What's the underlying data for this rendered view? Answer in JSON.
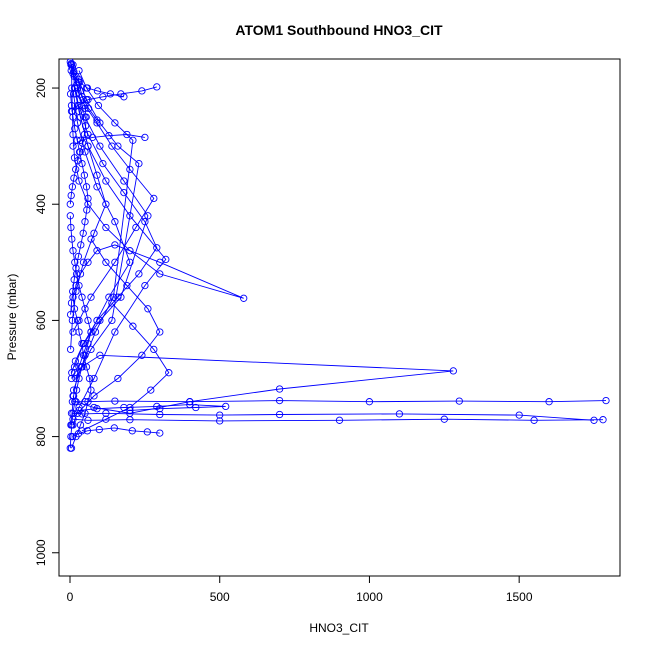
{
  "chart_data": {
    "type": "line",
    "title": "ATOM1 Southbound HNO3_CIT",
    "xlabel": "HNO3_CIT",
    "ylabel": "Pressure (mbar)",
    "xlim": [
      0,
      1800
    ],
    "ylim": [
      1040,
      150
    ],
    "y_reversed": true,
    "grid": false,
    "color": "#0000ff",
    "x_ticks": [
      0,
      500,
      1000,
      1500
    ],
    "y_ticks": [
      200,
      400,
      600,
      800,
      1000
    ],
    "series": [
      {
        "x": [
          5,
          20,
          35,
          50,
          60,
          70,
          65,
          55,
          45,
          40,
          30,
          25,
          15,
          10,
          20,
          35,
          60,
          90,
          150,
          300,
          580,
          300,
          200,
          120,
          60,
          30,
          15,
          10,
          8,
          6,
          5
        ],
        "y": [
          820,
          800,
          780,
          760,
          740,
          720,
          700,
          680,
          660,
          640,
          620,
          600,
          580,
          560,
          540,
          520,
          500,
          480,
          470,
          500,
          562,
          520,
          480,
          440,
          400,
          360,
          320,
          280,
          240,
          200,
          160
        ]
      },
      {
        "x": [
          10,
          30,
          80,
          150,
          250,
          320,
          200,
          120,
          60,
          30,
          15,
          10
        ],
        "y": [
          780,
          750,
          700,
          620,
          540,
          495,
          420,
          360,
          300,
          240,
          200,
          160
        ]
      },
      {
        "x": [
          5,
          15,
          40,
          100,
          1280,
          700,
          400,
          200,
          80,
          20,
          10
        ],
        "y": [
          700,
          690,
          680,
          660,
          687,
          718,
          740,
          760,
          750,
          740,
          730
        ]
      },
      {
        "x": [
          8,
          50,
          150,
          400,
          700,
          1000,
          1300,
          1600,
          1790
        ],
        "y": [
          740,
          740,
          739,
          740,
          738,
          740,
          739,
          740,
          738
        ]
      },
      {
        "x": [
          10,
          60,
          200,
          500,
          900,
          1250,
          1550,
          1780
        ],
        "y": [
          770,
          772,
          771,
          773,
          772,
          770,
          772,
          771
        ]
      },
      {
        "x": [
          5,
          40,
          120,
          300,
          500,
          700,
          1100,
          1500,
          1750
        ],
        "y": [
          760,
          761,
          760,
          762,
          763,
          762,
          761,
          763,
          772
        ]
      },
      {
        "x": [
          10,
          30,
          70,
          150,
          220,
          280,
          200,
          140,
          90,
          50,
          20
        ],
        "y": [
          620,
          600,
          560,
          500,
          440,
          390,
          340,
          300,
          260,
          230,
          210
        ]
      },
      {
        "x": [
          6,
          18,
          45,
          90,
          160,
          230,
          290,
          250,
          180,
          110,
          60,
          30
        ],
        "y": [
          690,
          670,
          640,
          600,
          560,
          520,
          475,
          430,
          380,
          330,
          280,
          230
        ]
      },
      {
        "x": [
          15,
          45,
          100,
          170,
          260,
          180,
          100,
          50,
          25
        ],
        "y": [
          680,
          640,
          600,
          560,
          420,
          360,
          300,
          250,
          200
        ]
      },
      {
        "x": [
          3,
          12,
          30,
          70,
          130,
          200,
          150,
          90,
          50,
          25,
          12
        ],
        "y": [
          780,
          730,
          680,
          620,
          560,
          500,
          430,
          370,
          310,
          260,
          210
        ]
      },
      {
        "x": [
          20,
          70,
          140,
          230,
          160,
          100,
          55,
          28
        ],
        "y": [
          700,
          650,
          600,
          330,
          300,
          260,
          220,
          185
        ]
      },
      {
        "x": [
          12,
          38,
          85,
          145,
          210,
          150,
          95,
          55,
          30
        ],
        "y": [
          720,
          680,
          620,
          560,
          290,
          260,
          230,
          200,
          170
        ]
      },
      {
        "x": [
          2,
          8,
          20,
          45,
          80,
          120,
          90,
          60,
          35,
          18
        ],
        "y": [
          650,
          600,
          550,
          500,
          450,
          400,
          350,
          300,
          250,
          200
        ]
      },
      {
        "x": [
          25,
          80,
          160,
          240,
          300,
          260,
          190,
          120,
          70
        ],
        "y": [
          760,
          730,
          700,
          660,
          620,
          580,
          540,
          500,
          460
        ]
      },
      {
        "x": [
          40,
          120,
          200,
          270,
          330,
          280,
          210,
          140
        ],
        "y": [
          790,
          770,
          750,
          720,
          690,
          650,
          610,
          570
        ]
      },
      {
        "x": [
          5,
          25,
          60,
          110,
          170,
          240,
          290
        ],
        "y": [
          240,
          230,
          220,
          215,
          210,
          205,
          198
        ]
      },
      {
        "x": [
          10,
          35,
          75,
          130,
          190,
          250
        ],
        "y": [
          300,
          290,
          285,
          282,
          280,
          285
        ]
      },
      {
        "x": [
          4,
          14,
          32,
          58,
          92,
          135,
          180
        ],
        "y": [
          170,
          180,
          190,
          200,
          205,
          210,
          215
        ]
      },
      {
        "x": [
          3,
          10,
          22,
          40,
          62,
          90
        ],
        "y": [
          160,
          175,
          195,
          215,
          235,
          255
        ]
      },
      {
        "x": [
          8,
          28,
          58,
          98,
          148,
          208,
          258,
          300
        ],
        "y": [
          800,
          795,
          790,
          788,
          785,
          790,
          792,
          794
        ]
      },
      {
        "x": [
          30,
          90,
          180,
          290,
          400,
          520,
          420,
          300,
          200
        ],
        "y": [
          755,
          752,
          750,
          748,
          745,
          748,
          750,
          752,
          755
        ]
      },
      {
        "x": [
          1,
          3,
          6,
          10,
          16,
          22,
          30,
          40,
          50,
          60,
          70,
          60,
          50,
          40,
          30,
          22,
          16,
          10,
          6,
          3,
          1
        ],
        "y": [
          820,
          800,
          780,
          760,
          740,
          720,
          700,
          680,
          660,
          640,
          620,
          600,
          580,
          560,
          540,
          520,
          500,
          480,
          460,
          440,
          420
        ]
      },
      {
        "x": [
          2,
          5,
          9,
          14,
          20,
          28,
          36,
          44,
          50,
          56,
          60,
          55,
          48,
          40,
          32,
          24,
          16,
          10,
          5,
          2
        ],
        "y": [
          590,
          570,
          550,
          530,
          510,
          490,
          470,
          450,
          430,
          410,
          390,
          370,
          350,
          330,
          310,
          290,
          270,
          250,
          230,
          210
        ]
      },
      {
        "x": [
          1,
          4,
          8,
          13,
          19,
          26,
          34,
          42,
          48,
          52,
          54,
          50,
          44,
          36,
          28,
          20,
          13,
          8,
          4,
          1
        ],
        "y": [
          400,
          385,
          370,
          355,
          340,
          325,
          310,
          295,
          280,
          265,
          250,
          235,
          220,
          205,
          190,
          180,
          172,
          165,
          158,
          155
        ]
      }
    ]
  }
}
